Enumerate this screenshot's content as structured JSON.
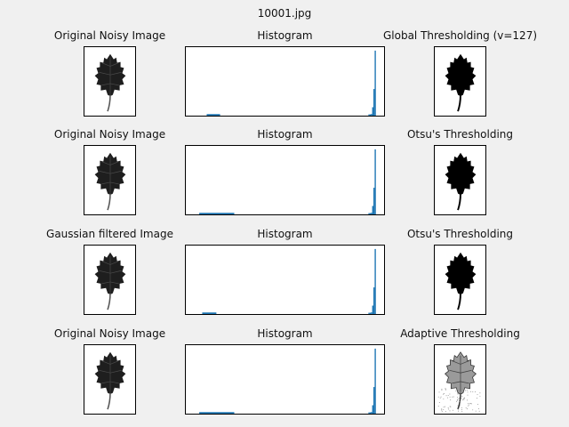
{
  "figure": {
    "title": "10001.jpg"
  },
  "rows": [
    {
      "left_title": "Original Noisy Image",
      "mid_title": "Histogram",
      "right_title": "Global Thresholding (v=127)",
      "left_type": "noisy",
      "right_type": "binary"
    },
    {
      "left_title": "Original Noisy Image",
      "mid_title": "Histogram",
      "right_title": "Otsu's Thresholding",
      "left_type": "noisy",
      "right_type": "binary"
    },
    {
      "left_title": "Gaussian filtered Image",
      "mid_title": "Histogram",
      "right_title": "Otsu's Thresholding",
      "left_type": "filtered",
      "right_type": "binary"
    },
    {
      "left_title": "Original Noisy Image",
      "mid_title": "Histogram",
      "right_title": "Adaptive Thresholding",
      "left_type": "noisy",
      "right_type": "adaptive"
    }
  ],
  "colors": {
    "hist_bar": "#1f77b4",
    "leaf_dark": "#1e1e1e",
    "leaf_binary": "#000000"
  },
  "chart_data": [
    {
      "type": "bar",
      "title": "Histogram",
      "bins": [
        {
          "from": 28,
          "to": 46,
          "count": 0.015
        },
        {
          "from": 245,
          "to": 255,
          "count": 1.0
        }
      ]
    },
    {
      "type": "bar",
      "title": "Histogram",
      "bins": [
        {
          "from": 18,
          "to": 65,
          "count": 0.015
        },
        {
          "from": 245,
          "to": 255,
          "count": 1.0
        }
      ]
    },
    {
      "type": "bar",
      "title": "Histogram",
      "bins": [
        {
          "from": 22,
          "to": 41,
          "count": 0.015
        },
        {
          "from": 245,
          "to": 255,
          "count": 1.0
        }
      ]
    },
    {
      "type": "bar",
      "title": "Histogram",
      "bins": [
        {
          "from": 18,
          "to": 65,
          "count": 0.015
        },
        {
          "from": 245,
          "to": 255,
          "count": 1.0
        }
      ]
    }
  ]
}
